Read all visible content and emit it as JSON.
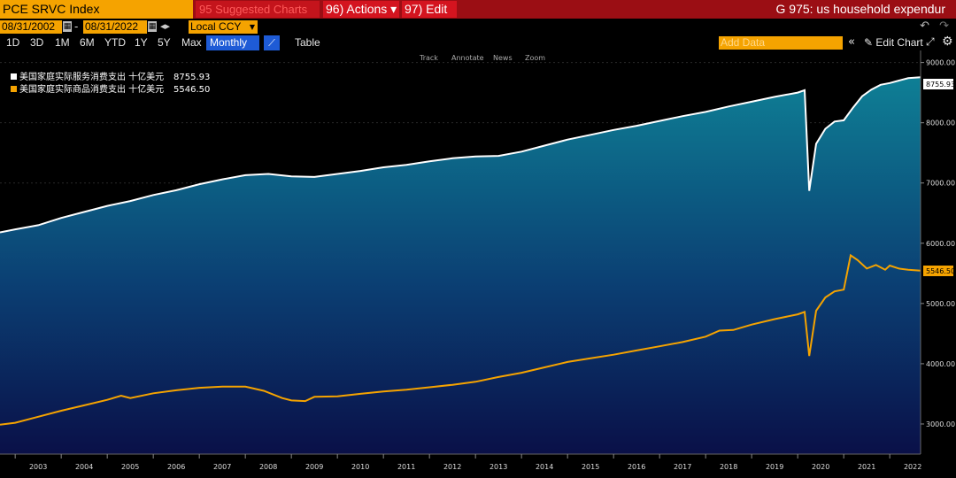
{
  "toolbar": {
    "security": "PCE SRVC Index",
    "suggested": "95 Suggested Charts",
    "actions": "96) Actions ▾",
    "edit": "97) Edit ▾",
    "title": "G 975: us household expendur"
  },
  "range": {
    "start": "08/31/2002",
    "end": "08/31/2022",
    "dash": "-",
    "currency": "Local CCY"
  },
  "periods": [
    "1D",
    "3D",
    "1M",
    "6M",
    "YTD",
    "1Y",
    "5Y",
    "Max"
  ],
  "frequency": "Monthly ▼",
  "table_label": "Table",
  "add_data_placeholder": "Add Data",
  "edit_chart_label": "Edit Chart",
  "chart_tools": [
    "Track",
    "Annotate",
    "News",
    "Zoom"
  ],
  "colors": {
    "services": "#ffffff",
    "goods": "#f5a300",
    "area_top": "#0e7f95",
    "area_bottom": "#0a1048",
    "accent": "#f5a300",
    "header_red": "#9b0e14"
  },
  "legend": [
    {
      "label": "美国家庭实际服务消费支出 十亿美元",
      "value": "8755.93"
    },
    {
      "label": "美国家庭实际商品消费支出 十亿美元",
      "value": "5546.50"
    }
  ],
  "chart_data": {
    "type": "area",
    "xlim": [
      2002.67,
      2022.67
    ],
    "ylim": [
      2500,
      9200
    ],
    "yticks": [
      3000,
      4000,
      5000,
      6000,
      7000,
      8000,
      9000
    ],
    "ytick_labels": [
      "3000.00",
      "4000.00",
      "5000.00",
      "6000.00",
      "7000.00",
      "8000.00",
      "9000.00"
    ],
    "xticks": [
      "2003",
      "2004",
      "2005",
      "2006",
      "2007",
      "2008",
      "2009",
      "2010",
      "2011",
      "2012",
      "2013",
      "2014",
      "2015",
      "2016",
      "2017",
      "2018",
      "2019",
      "2020",
      "2021",
      "2022"
    ],
    "series": [
      {
        "name": "美国家庭实际服务消费支出 十亿美元",
        "last_value": "8755.93",
        "points": [
          [
            2002.67,
            6180
          ],
          [
            2003.0,
            6230
          ],
          [
            2003.5,
            6300
          ],
          [
            2004.0,
            6420
          ],
          [
            2004.5,
            6520
          ],
          [
            2005.0,
            6620
          ],
          [
            2005.5,
            6700
          ],
          [
            2006.0,
            6800
          ],
          [
            2006.5,
            6880
          ],
          [
            2007.0,
            6980
          ],
          [
            2007.5,
            7060
          ],
          [
            2008.0,
            7130
          ],
          [
            2008.5,
            7150
          ],
          [
            2009.0,
            7110
          ],
          [
            2009.5,
            7100
          ],
          [
            2010.0,
            7150
          ],
          [
            2010.5,
            7200
          ],
          [
            2011.0,
            7260
          ],
          [
            2011.5,
            7300
          ],
          [
            2012.0,
            7360
          ],
          [
            2012.5,
            7410
          ],
          [
            2013.0,
            7440
          ],
          [
            2013.5,
            7450
          ],
          [
            2014.0,
            7520
          ],
          [
            2014.5,
            7620
          ],
          [
            2015.0,
            7720
          ],
          [
            2015.5,
            7800
          ],
          [
            2016.0,
            7880
          ],
          [
            2016.5,
            7950
          ],
          [
            2017.0,
            8030
          ],
          [
            2017.5,
            8110
          ],
          [
            2018.0,
            8180
          ],
          [
            2018.5,
            8270
          ],
          [
            2019.0,
            8350
          ],
          [
            2019.5,
            8430
          ],
          [
            2020.0,
            8500
          ],
          [
            2020.15,
            8540
          ],
          [
            2020.25,
            6870
          ],
          [
            2020.4,
            7650
          ],
          [
            2020.6,
            7900
          ],
          [
            2020.8,
            8020
          ],
          [
            2021.0,
            8040
          ],
          [
            2021.2,
            8250
          ],
          [
            2021.4,
            8440
          ],
          [
            2021.6,
            8550
          ],
          [
            2021.8,
            8630
          ],
          [
            2022.0,
            8660
          ],
          [
            2022.2,
            8700
          ],
          [
            2022.4,
            8740
          ],
          [
            2022.67,
            8755.93
          ]
        ]
      },
      {
        "name": "美国家庭实际商品消费支出 十亿美元",
        "last_value": "5546.50",
        "points": [
          [
            2002.67,
            2990
          ],
          [
            2003.0,
            3020
          ],
          [
            2003.5,
            3120
          ],
          [
            2004.0,
            3220
          ],
          [
            2004.5,
            3310
          ],
          [
            2005.0,
            3400
          ],
          [
            2005.3,
            3470
          ],
          [
            2005.5,
            3430
          ],
          [
            2006.0,
            3510
          ],
          [
            2006.5,
            3560
          ],
          [
            2007.0,
            3600
          ],
          [
            2007.5,
            3620
          ],
          [
            2008.0,
            3620
          ],
          [
            2008.4,
            3550
          ],
          [
            2008.8,
            3430
          ],
          [
            2009.0,
            3390
          ],
          [
            2009.3,
            3380
          ],
          [
            2009.5,
            3450
          ],
          [
            2010.0,
            3460
          ],
          [
            2010.5,
            3500
          ],
          [
            2011.0,
            3540
          ],
          [
            2011.5,
            3570
          ],
          [
            2012.0,
            3610
          ],
          [
            2012.5,
            3650
          ],
          [
            2013.0,
            3700
          ],
          [
            2013.5,
            3780
          ],
          [
            2014.0,
            3850
          ],
          [
            2014.5,
            3940
          ],
          [
            2015.0,
            4030
          ],
          [
            2015.5,
            4090
          ],
          [
            2016.0,
            4150
          ],
          [
            2016.5,
            4220
          ],
          [
            2017.0,
            4290
          ],
          [
            2017.5,
            4360
          ],
          [
            2018.0,
            4450
          ],
          [
            2018.3,
            4550
          ],
          [
            2018.6,
            4560
          ],
          [
            2019.0,
            4650
          ],
          [
            2019.5,
            4740
          ],
          [
            2020.0,
            4820
          ],
          [
            2020.15,
            4860
          ],
          [
            2020.25,
            4130
          ],
          [
            2020.4,
            4880
          ],
          [
            2020.6,
            5100
          ],
          [
            2020.8,
            5200
          ],
          [
            2021.0,
            5230
          ],
          [
            2021.15,
            5800
          ],
          [
            2021.3,
            5720
          ],
          [
            2021.5,
            5580
          ],
          [
            2021.7,
            5640
          ],
          [
            2021.9,
            5560
          ],
          [
            2022.0,
            5630
          ],
          [
            2022.2,
            5580
          ],
          [
            2022.4,
            5560
          ],
          [
            2022.67,
            5546.5
          ]
        ]
      }
    ]
  }
}
